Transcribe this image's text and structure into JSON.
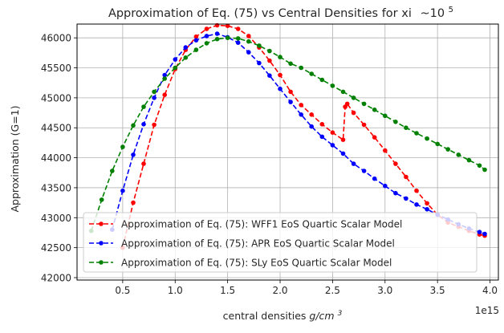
{
  "chart_data": {
    "type": "line",
    "title": "Approximation of Eq. (75) vs Central Densities for xi",
    "title_suffix": "~10",
    "title_exponent": "5",
    "xlabel_prefix": "central densities ",
    "xlabel_math": "g/cm",
    "xlabel_exponent": "3",
    "ylabel": "Approximation (G=1)",
    "x_multiplier_label": "1e15",
    "x_ticks": [
      0.5,
      1.0,
      1.5,
      2.0,
      2.5,
      3.0,
      3.5,
      4.0
    ],
    "x_tick_labels": [
      "0.5",
      "1.0",
      "1.5",
      "2.0",
      "2.5",
      "3.0",
      "3.5",
      "4.0"
    ],
    "y_ticks": [
      42000,
      42500,
      43000,
      43500,
      44000,
      44500,
      45000,
      45500,
      46000
    ],
    "y_tick_labels": [
      "42000",
      "42500",
      "43000",
      "43500",
      "44000",
      "44500",
      "45000",
      "45500",
      "46000"
    ],
    "xlim": [
      0.065,
      4.08
    ],
    "ylim": [
      41960,
      46230
    ],
    "grid": true,
    "legend_position": "lower-left",
    "series": [
      {
        "name": "Approximation of Eq. (75): WFF1 EoS Quartic Scalar Model",
        "color": "#ff0000",
        "x": [
          0.5,
          0.6,
          0.7,
          0.8,
          0.9,
          1.0,
          1.1,
          1.2,
          1.3,
          1.4,
          1.5,
          1.6,
          1.7,
          1.8,
          1.9,
          2.0,
          2.1,
          2.2,
          2.3,
          2.4,
          2.5,
          2.6,
          2.62,
          2.64,
          2.7,
          2.8,
          2.9,
          3.0,
          3.1,
          3.2,
          3.3,
          3.4,
          3.5,
          3.6,
          3.7,
          3.8,
          3.9,
          3.95
        ],
        "y": [
          42500,
          43250,
          43900,
          44550,
          45050,
          45480,
          45800,
          46020,
          46150,
          46210,
          46200,
          46150,
          46030,
          45840,
          45620,
          45380,
          45100,
          44880,
          44720,
          44560,
          44420,
          44300,
          44850,
          44900,
          44750,
          44550,
          44340,
          44120,
          43900,
          43680,
          43450,
          43240,
          43050,
          42920,
          42850,
          42780,
          42720,
          42700
        ]
      },
      {
        "name": "Approximation of Eq. (75): APR EoS Quartic Scalar Model",
        "color": "#0000ff",
        "x": [
          0.4,
          0.5,
          0.6,
          0.7,
          0.8,
          0.9,
          1.0,
          1.1,
          1.2,
          1.3,
          1.4,
          1.5,
          1.6,
          1.7,
          1.8,
          1.9,
          2.0,
          2.1,
          2.2,
          2.3,
          2.4,
          2.5,
          2.6,
          2.7,
          2.8,
          2.9,
          3.0,
          3.1,
          3.2,
          3.3,
          3.4,
          3.5,
          3.6,
          3.7,
          3.8,
          3.9,
          3.95
        ],
        "y": [
          42800,
          43450,
          44050,
          44560,
          45000,
          45380,
          45640,
          45840,
          45960,
          46030,
          46070,
          46010,
          45920,
          45760,
          45580,
          45370,
          45150,
          44930,
          44720,
          44520,
          44350,
          44210,
          44070,
          43900,
          43780,
          43650,
          43530,
          43410,
          43320,
          43220,
          43140,
          43050,
          42970,
          42890,
          42820,
          42760,
          42730
        ]
      },
      {
        "name": "Approximation of Eq. (75): SLy EoS Quartic Scalar Model",
        "color": "#008000",
        "x": [
          0.2,
          0.3,
          0.4,
          0.5,
          0.6,
          0.7,
          0.8,
          0.9,
          1.0,
          1.1,
          1.2,
          1.3,
          1.4,
          1.5,
          1.6,
          1.7,
          1.8,
          1.9,
          2.0,
          2.1,
          2.2,
          2.3,
          2.4,
          2.5,
          2.6,
          2.7,
          2.8,
          2.9,
          3.0,
          3.1,
          3.2,
          3.3,
          3.4,
          3.5,
          3.6,
          3.7,
          3.8,
          3.9,
          3.95
        ],
        "y": [
          42780,
          43300,
          43780,
          44180,
          44540,
          44850,
          45100,
          45320,
          45500,
          45670,
          45800,
          45910,
          45980,
          46000,
          45990,
          45940,
          45870,
          45780,
          45680,
          45570,
          45500,
          45400,
          45300,
          45200,
          45100,
          45000,
          44900,
          44800,
          44700,
          44600,
          44500,
          44410,
          44320,
          44230,
          44140,
          44050,
          43960,
          43870,
          43800
        ]
      }
    ]
  }
}
